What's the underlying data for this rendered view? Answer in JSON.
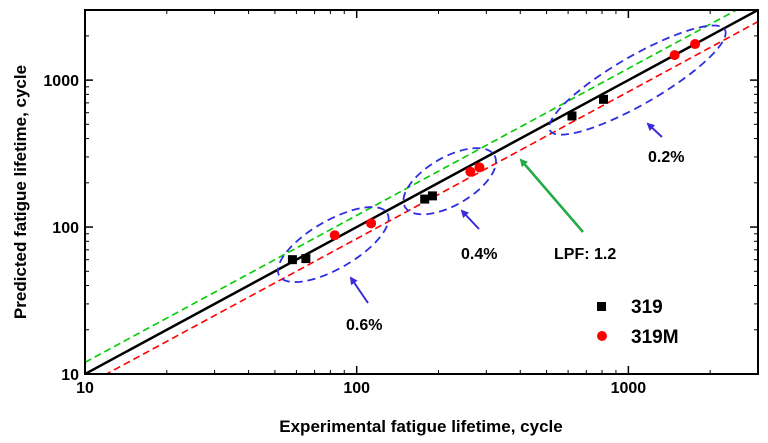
{
  "chart_data": {
    "type": "scatter",
    "scale": "log-log",
    "xlabel": "Experimental fatigue lifetime, cycle",
    "ylabel": "Predicted fatigue lifetime, cycle",
    "xlim": [
      10,
      3000
    ],
    "ylim": [
      10,
      3000
    ],
    "x_ticks": [
      10,
      100,
      1000
    ],
    "y_ticks": [
      10,
      100,
      1000
    ],
    "x_tick_labels": [
      "10",
      "100",
      "1000"
    ],
    "y_tick_labels": [
      "10",
      "100",
      "1000"
    ],
    "legend_position": "bottom-right",
    "series": [
      {
        "name": "319",
        "marker": "square",
        "color": "#000000",
        "points": [
          [
            58,
            60
          ],
          [
            65,
            61
          ],
          [
            178,
            155
          ],
          [
            190,
            163
          ],
          [
            620,
            570
          ],
          [
            810,
            740
          ]
        ]
      },
      {
        "name": "319M",
        "marker": "circle",
        "color": "#ff0000",
        "points": [
          [
            83,
            88
          ],
          [
            113,
            106
          ],
          [
            262,
            238
          ],
          [
            283,
            255
          ],
          [
            1480,
            1480
          ],
          [
            1760,
            1760
          ]
        ]
      }
    ],
    "lines": [
      {
        "name": "1:1",
        "color": "#000000",
        "style": "solid",
        "factor": 1.0
      },
      {
        "name": "upper",
        "color": "#00cc00",
        "style": "dashed",
        "factor": 1.2
      },
      {
        "name": "lower",
        "color": "#ff0000",
        "style": "dashed",
        "factor": 0.8333
      }
    ],
    "ellipses": [
      {
        "label": "0.6%",
        "center": [
          82,
          76
        ],
        "x_span": [
          52,
          130
        ]
      },
      {
        "label": "0.4%",
        "center": [
          220,
          205
        ],
        "x_span": [
          150,
          320
        ]
      },
      {
        "label": "0.2%",
        "center": [
          1080,
          1000
        ],
        "x_span": [
          500,
          2200
        ]
      }
    ],
    "annotations": [
      {
        "text": "0.6%",
        "color": "#3a2bd8"
      },
      {
        "text": "0.4%",
        "color": "#3a2bd8"
      },
      {
        "text": "0.2%",
        "color": "#3a2bd8"
      },
      {
        "text": "LPF: 1.2",
        "color": "#22aa44"
      }
    ]
  }
}
